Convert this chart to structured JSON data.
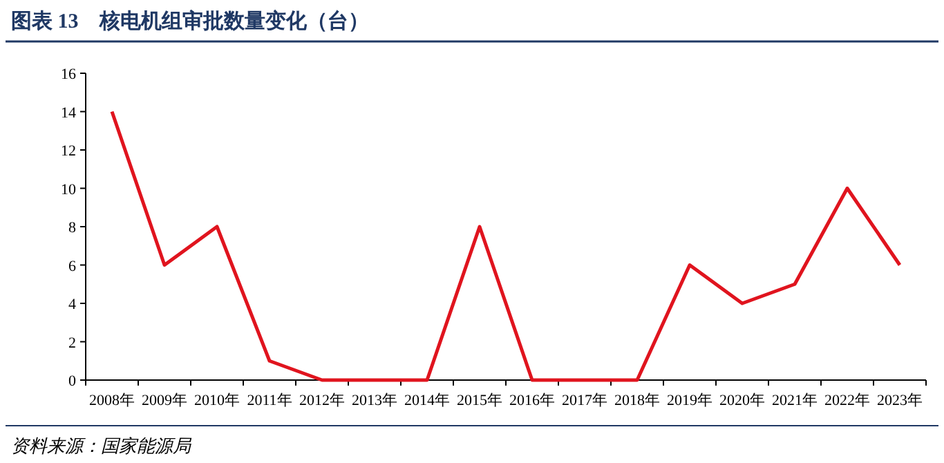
{
  "chart_data": {
    "type": "line",
    "title": "图表 13　核电机组审批数量变化（台）",
    "categories": [
      "2008年",
      "2009年",
      "2010年",
      "2011年",
      "2012年",
      "2013年",
      "2014年",
      "2015年",
      "2016年",
      "2017年",
      "2018年",
      "2019年",
      "2020年",
      "2021年",
      "2022年",
      "2023年"
    ],
    "series": [
      {
        "color": "#e0141e",
        "values": [
          14,
          6,
          8,
          1,
          0,
          0,
          0,
          8,
          0,
          0,
          0,
          6,
          4,
          5,
          10,
          6
        ]
      }
    ],
    "ylim": [
      0,
      16
    ],
    "yticks": [
      0,
      2,
      4,
      6,
      8,
      10,
      12,
      14,
      16
    ],
    "grid": false,
    "marker": "none",
    "line_style": "solid",
    "annotations": [
      "资料来源：国家能源局"
    ]
  }
}
